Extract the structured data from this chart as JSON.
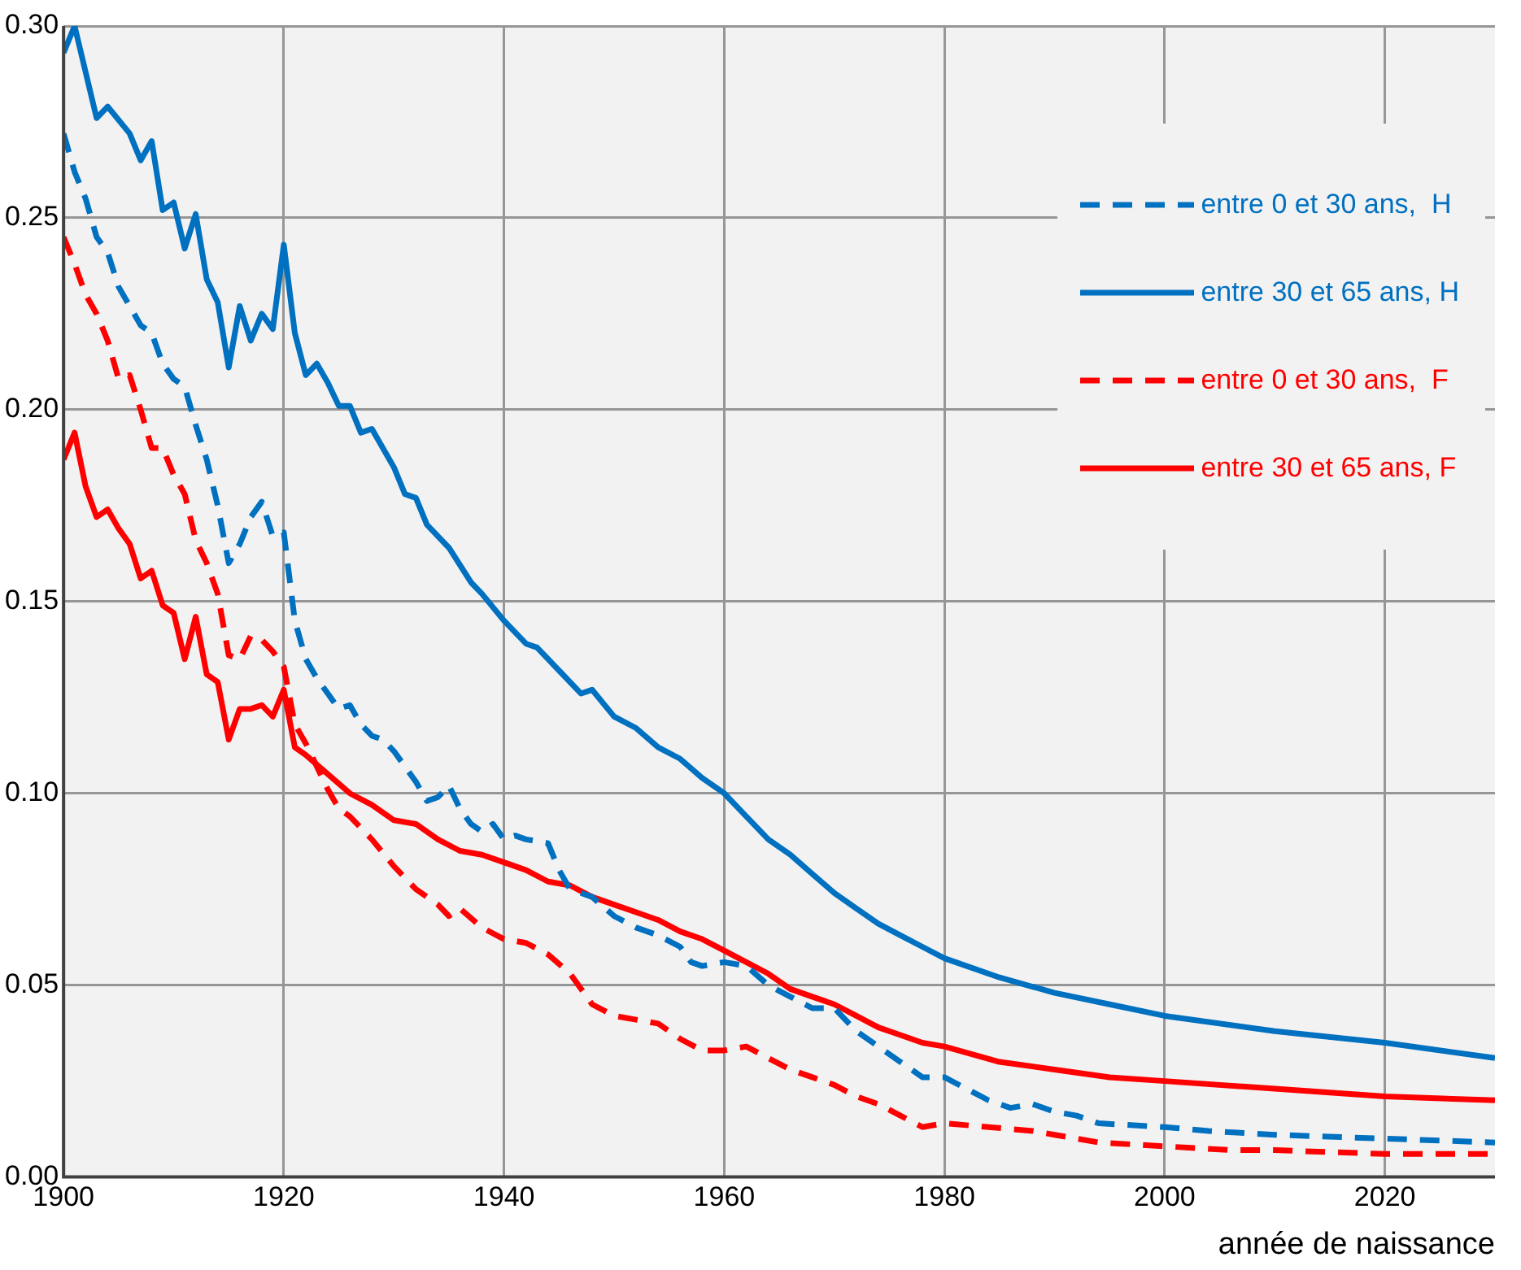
{
  "chart_data": {
    "type": "line",
    "xlabel": "année de naissance",
    "xlim": [
      1900,
      2030
    ],
    "xticks": [
      1900,
      1920,
      1940,
      1960,
      1980,
      2000,
      2020
    ],
    "ylim": [
      0,
      0.3
    ],
    "yticks": [
      {
        "value": 0,
        "label": "0.00"
      },
      {
        "value": 0.05,
        "label": "0.05"
      },
      {
        "value": 0.1,
        "label": "0.10"
      },
      {
        "value": 0.15,
        "label": "0.15"
      },
      {
        "value": 0.2,
        "label": "0.20"
      },
      {
        "value": 0.25,
        "label": "0.25"
      },
      {
        "value": 0.3,
        "label": "0.30"
      }
    ],
    "grid": true,
    "legend": "top right",
    "marker": "none",
    "series": [
      {
        "name": "entre 0 et 30 ans,  H",
        "color": "#0070c0",
        "line_style": "dashed",
        "x": [
          1900,
          1901,
          1902,
          1903,
          1904,
          1905,
          1906,
          1907,
          1908,
          1909,
          1910,
          1911,
          1912,
          1913,
          1914,
          1915,
          1916,
          1917,
          1918,
          1919,
          1920,
          1921,
          1922,
          1923,
          1924,
          1925,
          1926,
          1927,
          1928,
          1929,
          1930,
          1932,
          1933,
          1934,
          1935,
          1936,
          1937,
          1938,
          1939,
          1940,
          1941,
          1942,
          1944,
          1945,
          1946,
          1948,
          1950,
          1952,
          1954,
          1956,
          1957,
          1958,
          1960,
          1962,
          1964,
          1966,
          1968,
          1970,
          1972,
          1974,
          1976,
          1978,
          1980,
          1982,
          1984,
          1986,
          1988,
          1990,
          1992,
          1994,
          2000,
          2004,
          2010,
          2020,
          2030
        ],
        "values": [
          0.272,
          0.262,
          0.255,
          0.245,
          0.241,
          0.232,
          0.227,
          0.222,
          0.22,
          0.212,
          0.208,
          0.206,
          0.196,
          0.187,
          0.175,
          0.16,
          0.165,
          0.172,
          0.176,
          0.167,
          0.168,
          0.145,
          0.135,
          0.13,
          0.126,
          0.122,
          0.123,
          0.118,
          0.115,
          0.114,
          0.111,
          0.103,
          0.098,
          0.099,
          0.102,
          0.096,
          0.092,
          0.09,
          0.092,
          0.088,
          0.089,
          0.088,
          0.087,
          0.08,
          0.075,
          0.073,
          0.068,
          0.065,
          0.063,
          0.06,
          0.056,
          0.055,
          0.056,
          0.055,
          0.05,
          0.047,
          0.044,
          0.044,
          0.038,
          0.034,
          0.03,
          0.026,
          0.026,
          0.023,
          0.02,
          0.018,
          0.019,
          0.017,
          0.016,
          0.014,
          0.013,
          0.012,
          0.011,
          0.01,
          0.009
        ]
      },
      {
        "name": "entre 30 et 65 ans, H",
        "color": "#0070c0",
        "line_style": "solid",
        "x": [
          1900,
          1901,
          1903,
          1904,
          1906,
          1907,
          1908,
          1909,
          1910,
          1911,
          1912,
          1913,
          1914,
          1915,
          1916,
          1917,
          1918,
          1919,
          1920,
          1921,
          1922,
          1923,
          1924,
          1925,
          1926,
          1927,
          1928,
          1930,
          1931,
          1932,
          1933,
          1935,
          1937,
          1938,
          1940,
          1942,
          1943,
          1945,
          1947,
          1948,
          1950,
          1952,
          1954,
          1956,
          1958,
          1960,
          1962,
          1964,
          1966,
          1968,
          1970,
          1972,
          1974,
          1976,
          1978,
          1980,
          1985,
          1990,
          1995,
          2000,
          2010,
          2020,
          2030
        ],
        "values": [
          0.293,
          0.3,
          0.276,
          0.279,
          0.272,
          0.265,
          0.27,
          0.252,
          0.254,
          0.242,
          0.251,
          0.234,
          0.228,
          0.211,
          0.227,
          0.218,
          0.225,
          0.221,
          0.243,
          0.22,
          0.209,
          0.212,
          0.207,
          0.201,
          0.201,
          0.194,
          0.195,
          0.185,
          0.178,
          0.177,
          0.17,
          0.164,
          0.155,
          0.152,
          0.145,
          0.139,
          0.138,
          0.132,
          0.126,
          0.127,
          0.12,
          0.117,
          0.112,
          0.109,
          0.104,
          0.1,
          0.094,
          0.088,
          0.084,
          0.079,
          0.074,
          0.07,
          0.066,
          0.063,
          0.06,
          0.057,
          0.052,
          0.048,
          0.045,
          0.042,
          0.038,
          0.035,
          0.031
        ]
      },
      {
        "name": "entre 0 et 30 ans,  F",
        "color": "#ff0000",
        "line_style": "dashed",
        "x": [
          1900,
          1901,
          1902,
          1903,
          1904,
          1905,
          1906,
          1907,
          1908,
          1909,
          1910,
          1911,
          1912,
          1913,
          1914,
          1915,
          1916,
          1917,
          1918,
          1919,
          1920,
          1921,
          1922,
          1923,
          1924,
          1925,
          1926,
          1928,
          1930,
          1932,
          1934,
          1935,
          1936,
          1938,
          1940,
          1942,
          1944,
          1946,
          1948,
          1950,
          1952,
          1954,
          1956,
          1958,
          1960,
          1962,
          1964,
          1966,
          1968,
          1970,
          1972,
          1974,
          1976,
          1978,
          1980,
          1984,
          1988,
          1990,
          1994,
          2000,
          2006,
          2010,
          2020,
          2030
        ],
        "values": [
          0.245,
          0.238,
          0.23,
          0.225,
          0.218,
          0.208,
          0.209,
          0.2,
          0.19,
          0.19,
          0.183,
          0.178,
          0.166,
          0.16,
          0.152,
          0.136,
          0.135,
          0.141,
          0.14,
          0.137,
          0.133,
          0.118,
          0.113,
          0.107,
          0.101,
          0.096,
          0.094,
          0.088,
          0.081,
          0.075,
          0.071,
          0.068,
          0.07,
          0.065,
          0.062,
          0.061,
          0.058,
          0.053,
          0.045,
          0.042,
          0.041,
          0.04,
          0.036,
          0.033,
          0.033,
          0.034,
          0.031,
          0.028,
          0.026,
          0.024,
          0.021,
          0.019,
          0.016,
          0.013,
          0.014,
          0.013,
          0.012,
          0.011,
          0.009,
          0.008,
          0.007,
          0.007,
          0.006,
          0.006
        ]
      },
      {
        "name": "entre 30 et 65 ans, F",
        "color": "#ff0000",
        "line_style": "solid",
        "x": [
          1900,
          1901,
          1902,
          1903,
          1904,
          1905,
          1906,
          1907,
          1908,
          1909,
          1910,
          1911,
          1912,
          1913,
          1914,
          1915,
          1916,
          1917,
          1918,
          1919,
          1920,
          1921,
          1922,
          1924,
          1926,
          1928,
          1930,
          1932,
          1934,
          1936,
          1938,
          1940,
          1942,
          1944,
          1946,
          1948,
          1950,
          1952,
          1954,
          1956,
          1958,
          1960,
          1962,
          1964,
          1966,
          1968,
          1970,
          1972,
          1974,
          1976,
          1978,
          1980,
          1985,
          1990,
          1995,
          2000,
          2010,
          2020,
          2030
        ],
        "values": [
          0.187,
          0.194,
          0.18,
          0.172,
          0.174,
          0.169,
          0.165,
          0.156,
          0.158,
          0.149,
          0.147,
          0.135,
          0.146,
          0.131,
          0.129,
          0.114,
          0.122,
          0.122,
          0.123,
          0.12,
          0.127,
          0.112,
          0.11,
          0.105,
          0.1,
          0.097,
          0.093,
          0.092,
          0.088,
          0.085,
          0.084,
          0.082,
          0.08,
          0.077,
          0.076,
          0.073,
          0.071,
          0.069,
          0.067,
          0.064,
          0.062,
          0.059,
          0.056,
          0.053,
          0.049,
          0.047,
          0.045,
          0.042,
          0.039,
          0.037,
          0.035,
          0.034,
          0.03,
          0.028,
          0.026,
          0.025,
          0.023,
          0.021,
          0.02
        ]
      }
    ]
  }
}
